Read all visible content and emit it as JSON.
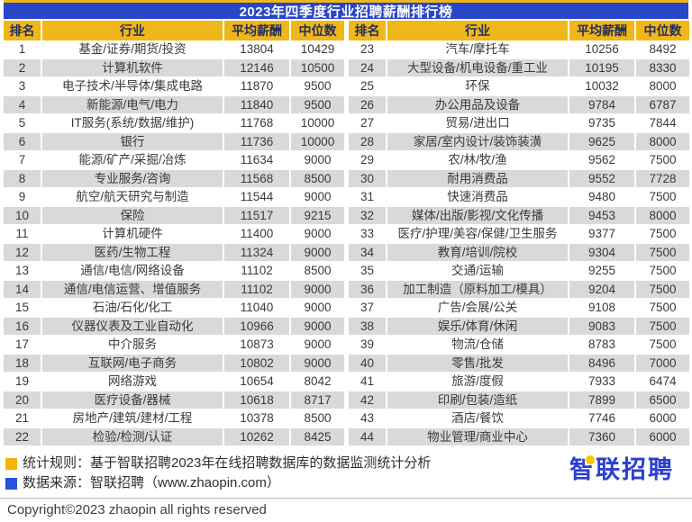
{
  "chart_data": {
    "type": "table",
    "title": "2023年四季度行业招聘薪酬排行榜",
    "columns": [
      "排名",
      "行业",
      "平均薪酬",
      "中位数"
    ],
    "rows": [
      [
        1,
        "基金/证券/期货/投资",
        13804,
        10429
      ],
      [
        2,
        "计算机软件",
        12146,
        10500
      ],
      [
        3,
        "电子技术/半导体/集成电路",
        11870,
        9500
      ],
      [
        4,
        "新能源/电气/电力",
        11840,
        9500
      ],
      [
        5,
        "IT服务(系统/数据/维护)",
        11768,
        10000
      ],
      [
        6,
        "银行",
        11736,
        10000
      ],
      [
        7,
        "能源/矿产/采掘/冶炼",
        11634,
        9000
      ],
      [
        8,
        "专业服务/咨询",
        11568,
        8500
      ],
      [
        9,
        "航空/航天研究与制造",
        11544,
        9000
      ],
      [
        10,
        "保险",
        11517,
        9215
      ],
      [
        11,
        "计算机硬件",
        11400,
        9000
      ],
      [
        12,
        "医药/生物工程",
        11324,
        9000
      ],
      [
        13,
        "通信/电信/网络设备",
        11102,
        8500
      ],
      [
        14,
        "通信/电信运营、增值服务",
        11102,
        9000
      ],
      [
        15,
        "石油/石化/化工",
        11040,
        9000
      ],
      [
        16,
        "仪器仪表及工业自动化",
        10966,
        9000
      ],
      [
        17,
        "中介服务",
        10873,
        9000
      ],
      [
        18,
        "互联网/电子商务",
        10802,
        9000
      ],
      [
        19,
        "网络游戏",
        10654,
        8042
      ],
      [
        20,
        "医疗设备/器械",
        10618,
        8717
      ],
      [
        21,
        "房地产/建筑/建材/工程",
        10378,
        8500
      ],
      [
        22,
        "检验/检测/认证",
        10262,
        8425
      ],
      [
        23,
        "汽车/摩托车",
        10256,
        8492
      ],
      [
        24,
        "大型设备/机电设备/重工业",
        10195,
        8330
      ],
      [
        25,
        "环保",
        10032,
        8000
      ],
      [
        26,
        "办公用品及设备",
        9784,
        6787
      ],
      [
        27,
        "贸易/进出口",
        9735,
        7844
      ],
      [
        28,
        "家居/室内设计/装饰装潢",
        9625,
        8000
      ],
      [
        29,
        "农/林/牧/渔",
        9562,
        7500
      ],
      [
        30,
        "耐用消费品",
        9552,
        7728
      ],
      [
        31,
        "快速消费品",
        9480,
        7500
      ],
      [
        32,
        "媒体/出版/影视/文化传播",
        9453,
        8000
      ],
      [
        33,
        "医疗/护理/美容/保健/卫生服务",
        9377,
        7500
      ],
      [
        34,
        "教育/培训/院校",
        9304,
        7500
      ],
      [
        35,
        "交通/运输",
        9255,
        7500
      ],
      [
        36,
        "加工制造（原料加工/模具）",
        9204,
        7500
      ],
      [
        37,
        "广告/会展/公关",
        9108,
        7500
      ],
      [
        38,
        "娱乐/体育/休闲",
        9083,
        7500
      ],
      [
        39,
        "物流/仓储",
        8783,
        7500
      ],
      [
        40,
        "零售/批发",
        8496,
        7000
      ],
      [
        41,
        "旅游/度假",
        7933,
        6474
      ],
      [
        42,
        "印刷/包装/造纸",
        7899,
        6500
      ],
      [
        43,
        "酒店/餐饮",
        7746,
        6000
      ],
      [
        44,
        "物业管理/商业中心",
        7360,
        6000
      ]
    ]
  },
  "footer": {
    "rule_line": "统计规则：基于智联招聘2023年在线招聘数据库的数据监测统计分析",
    "source_line": "数据来源：智联招聘（www.zhaopin.com）",
    "copyright": "Copyright©2023 zhaopin all rights reserved",
    "logo_text": "智联招聘"
  },
  "colors": {
    "title_bar_blue": "#2746c8",
    "accent_yellow": "#efb719",
    "row_stripe_gray": "#d9d9d9",
    "logo_blue": "#2b3fd2",
    "rule_marker_yellow": "#f5b400",
    "source_marker_blue": "#2b50e0"
  }
}
